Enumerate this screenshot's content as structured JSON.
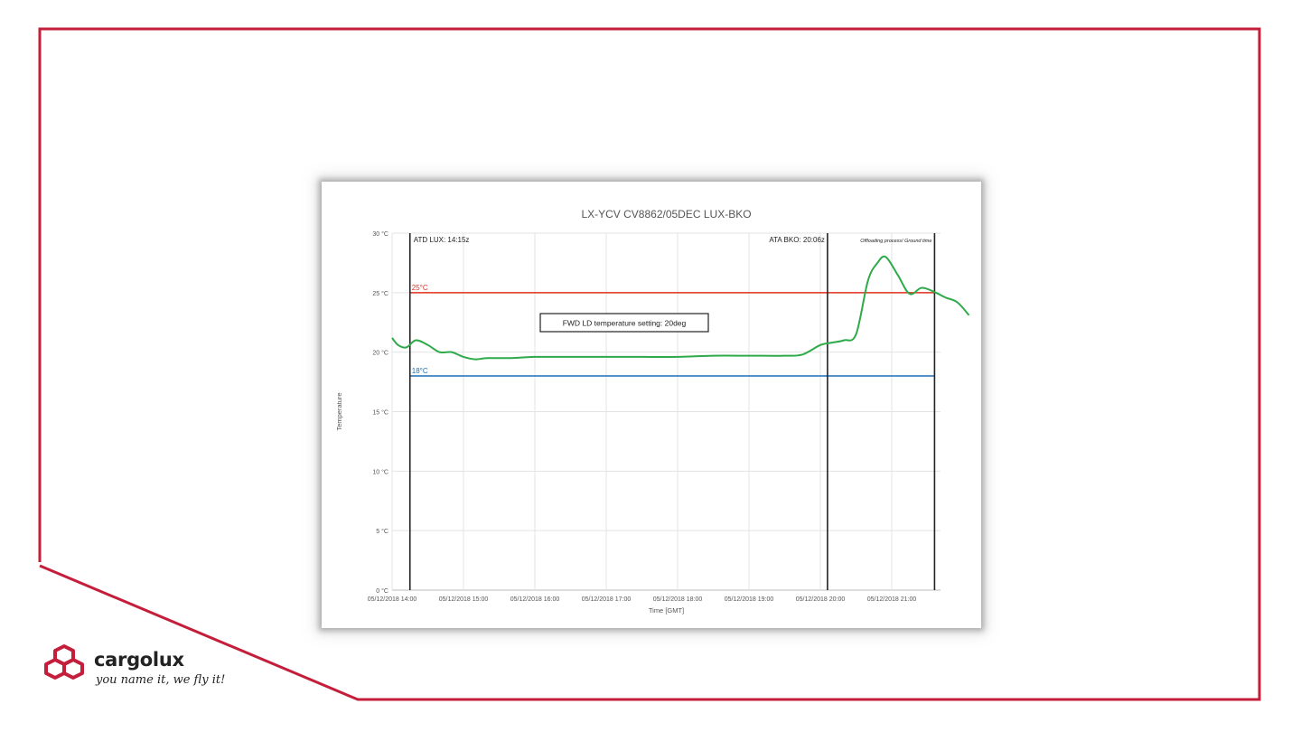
{
  "brand": {
    "name": "cargolux",
    "tagline": "you name it, we fly it!",
    "frame_color": "#c41e3a"
  },
  "chart_data": {
    "type": "line",
    "title": "LX-YCV CV8862/05DEC LUX-BKO",
    "xlabel": "Time [GMT]",
    "ylabel": "Temperature",
    "x_ticks": [
      "05/12/2018 14:00",
      "05/12/2018 15:00",
      "05/12/2018 16:00",
      "05/12/2018 17:00",
      "05/12/2018 18:00",
      "05/12/2018 19:00",
      "05/12/2018 20:00",
      "05/12/2018 21:00"
    ],
    "y_ticks": [
      "0 °C",
      "5 °C",
      "10 °C",
      "15 °C",
      "20 °C",
      "25 °C",
      "30 °C"
    ],
    "ylim": [
      0,
      30
    ],
    "xlim": [
      "05/12/2018 14:00",
      "05/12/2018 22:10"
    ],
    "grid": true,
    "series": [
      {
        "color": "#2eaa4a",
        "x": [
          "05/12/2018 14:00",
          "05/12/2018 14:05",
          "05/12/2018 14:12",
          "05/12/2018 14:20",
          "05/12/2018 14:30",
          "05/12/2018 14:40",
          "05/12/2018 14:50",
          "05/12/2018 15:00",
          "05/12/2018 15:10",
          "05/12/2018 15:20",
          "05/12/2018 15:40",
          "05/12/2018 16:00",
          "05/12/2018 16:30",
          "05/12/2018 17:00",
          "05/12/2018 17:30",
          "05/12/2018 18:00",
          "05/12/2018 18:30",
          "05/12/2018 19:00",
          "05/12/2018 19:30",
          "05/12/2018 19:45",
          "05/12/2018 20:00",
          "05/12/2018 20:10",
          "05/12/2018 20:20",
          "05/12/2018 20:30",
          "05/12/2018 20:40",
          "05/12/2018 20:48",
          "05/12/2018 20:55",
          "05/12/2018 21:05",
          "05/12/2018 21:15",
          "05/12/2018 21:25",
          "05/12/2018 21:35",
          "05/12/2018 21:45",
          "05/12/2018 21:55",
          "05/12/2018 22:05"
        ],
        "y": [
          21.2,
          20.6,
          20.4,
          21.0,
          20.6,
          20.0,
          20.0,
          19.6,
          19.4,
          19.5,
          19.5,
          19.6,
          19.6,
          19.6,
          19.6,
          19.6,
          19.7,
          19.7,
          19.7,
          19.8,
          20.6,
          20.8,
          21.0,
          21.5,
          26.0,
          27.5,
          28.0,
          26.5,
          24.9,
          25.4,
          25.1,
          24.6,
          24.2,
          23.1
        ]
      }
    ],
    "reference_lines": [
      {
        "label": "25°C",
        "value": 25,
        "color": "#e0301e"
      },
      {
        "label": "18°C",
        "value": 18,
        "color": "#1a6fb5"
      }
    ],
    "event_lines": [
      {
        "label": "ATD LUX: 14:15z",
        "x": "05/12/2018 14:15"
      },
      {
        "label": "ATA BKO: 20:06z",
        "x": "05/12/2018 20:06"
      },
      {
        "label": "Offloading process/ Ground time",
        "x": "05/12/2018 21:36"
      }
    ],
    "annotation": "FWD LD temperature setting: 20deg"
  }
}
